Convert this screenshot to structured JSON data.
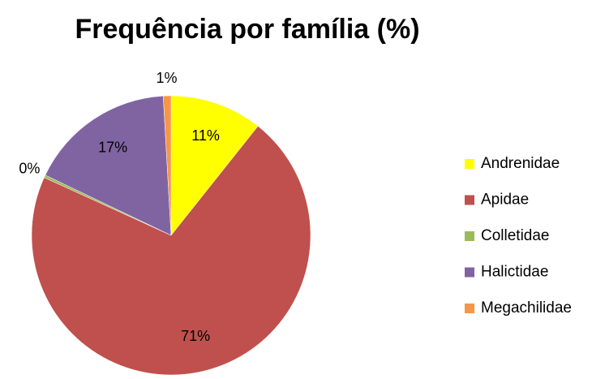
{
  "chart_data": {
    "type": "pie",
    "title": "Frequência por família (%)",
    "categories": [
      "Andrenidae",
      "Apidae",
      "Colletidae",
      "Halictidae",
      "Megachilidae"
    ],
    "values": [
      10.7,
      71.1,
      0.3,
      17.0,
      0.9
    ],
    "value_labels": [
      "11%",
      "71%",
      "0%",
      "17%",
      "1%"
    ],
    "colors": [
      "#ffff00",
      "#c0504d",
      "#9bbb59",
      "#8064a2",
      "#f79646"
    ],
    "legend": "right"
  }
}
